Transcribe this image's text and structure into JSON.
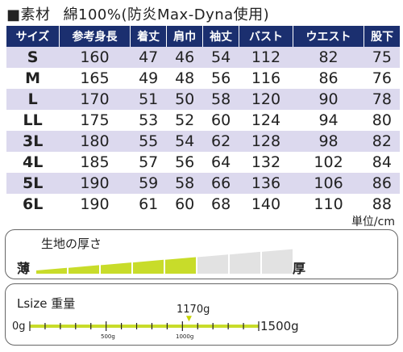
{
  "material": {
    "square": "■",
    "label": "素材",
    "value": "綿100%(防炎Max-Dyna使用)"
  },
  "size_table": {
    "headers": [
      "サイズ",
      "参考身長",
      "着丈",
      "肩巾",
      "袖丈",
      "バスト",
      "ウエスト",
      "股下"
    ],
    "rows": [
      [
        "S",
        "160",
        "47",
        "46",
        "54",
        "112",
        "82",
        "75"
      ],
      [
        "M",
        "165",
        "49",
        "48",
        "56",
        "116",
        "86",
        "76"
      ],
      [
        "L",
        "170",
        "51",
        "50",
        "58",
        "120",
        "90",
        "78"
      ],
      [
        "LL",
        "175",
        "53",
        "52",
        "60",
        "124",
        "94",
        "80"
      ],
      [
        "3L",
        "180",
        "55",
        "54",
        "62",
        "128",
        "98",
        "82"
      ],
      [
        "4L",
        "185",
        "57",
        "56",
        "64",
        "132",
        "102",
        "84"
      ],
      [
        "5L",
        "190",
        "59",
        "58",
        "66",
        "136",
        "106",
        "86"
      ],
      [
        "6L",
        "190",
        "61",
        "60",
        "68",
        "140",
        "110",
        "88"
      ]
    ],
    "unit": "単位/cm"
  },
  "thickness": {
    "title": "生地の厚さ",
    "thin_label": "薄",
    "thick_label": "厚",
    "level": 5,
    "total": 8,
    "filled_color": "#c8dc2a",
    "empty_color": "#e2e2e2"
  },
  "weight": {
    "title": "Lsize 重量",
    "min_label": "0g",
    "max_label": "1500g",
    "tick_500_label": "500g",
    "tick_1000_label": "1000g",
    "value_label": "1170g",
    "value": 1170,
    "max": 1500,
    "bar_color": "#c8dc2a"
  }
}
